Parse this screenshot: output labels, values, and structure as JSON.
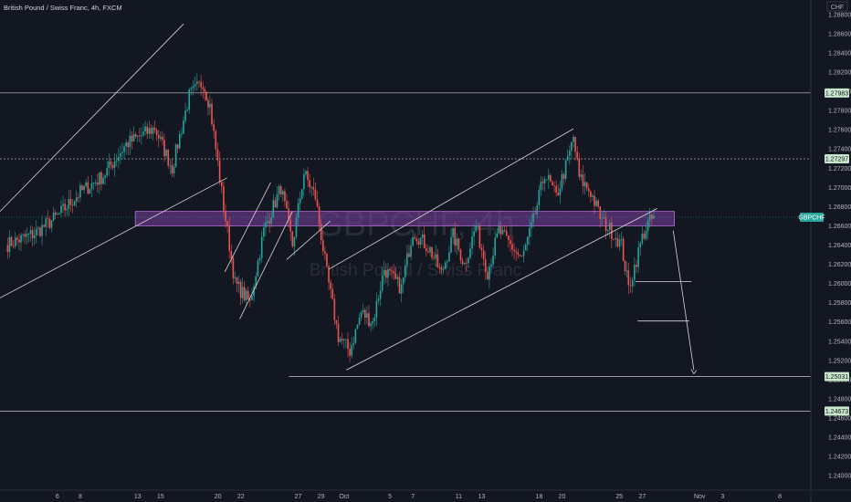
{
  "header": {
    "title": "British Pound / Swiss Franc, 4h, FXCM"
  },
  "watermark": {
    "symbol": "GBPCHF, 4h",
    "name": "British Pound / Swiss Franc"
  },
  "price_axis": {
    "currency": "CHF",
    "current_symbol_tag": "GBPCHF"
  },
  "colors": {
    "background": "#131722",
    "bull": "#26a69a",
    "bear": "#ef5350",
    "zone_fill": "#7b3fa0",
    "zone_border": "#b56fd8",
    "level_line": "#c8c8c8",
    "tag_bg": "#c8e6c9",
    "symbol_tag_bg": "#26a69a",
    "text": "#d1d4dc"
  },
  "chart_data": {
    "type": "candlestick",
    "title": "British Pound / Swiss Franc, 4h, FXCM",
    "ylim": [
      1.2385,
      1.2895
    ],
    "y_ticks": [
      "1.28800",
      "1.28600",
      "1.28400",
      "1.28200",
      "1.28000",
      "1.27800",
      "1.27600",
      "1.27400",
      "1.27200",
      "1.27000",
      "1.26800",
      "1.26600",
      "1.26400",
      "1.26200",
      "1.26000",
      "1.25800",
      "1.25600",
      "1.25400",
      "1.25200",
      "1.25000",
      "1.24800",
      "1.24600",
      "1.24400",
      "1.24200",
      "1.24000"
    ],
    "x_ticks": [
      {
        "label": "6",
        "day": 6
      },
      {
        "label": "8",
        "day": 8
      },
      {
        "label": "13",
        "day": 13
      },
      {
        "label": "15",
        "day": 15
      },
      {
        "label": "20",
        "day": 20
      },
      {
        "label": "22",
        "day": 22
      },
      {
        "label": "27",
        "day": 27
      },
      {
        "label": "29",
        "day": 29
      },
      {
        "label": "Oct",
        "day": 31
      },
      {
        "label": "5",
        "day": 35
      },
      {
        "label": "7",
        "day": 37
      },
      {
        "label": "11",
        "day": 41
      },
      {
        "label": "13",
        "day": 43
      },
      {
        "label": "18",
        "day": 48
      },
      {
        "label": "20",
        "day": 50
      },
      {
        "label": "25",
        "day": 55
      },
      {
        "label": "27",
        "day": 57
      },
      {
        "label": "Nov",
        "day": 62
      },
      {
        "label": "3",
        "day": 64
      },
      {
        "label": "8",
        "day": 69
      }
    ],
    "price_levels": [
      {
        "value": 1.27983,
        "label": "1.27983",
        "style": "solid"
      },
      {
        "value": 1.27297,
        "label": "1.27297",
        "style": "dashed"
      },
      {
        "value": 1.25031,
        "label": "1.25031",
        "style": "solid"
      },
      {
        "value": 1.24673,
        "label": "1.24673",
        "style": "solid"
      }
    ],
    "resistance_zone": {
      "from": 1.266,
      "to": 1.2675
    },
    "current_price": 1.2669,
    "anchors": [
      {
        "day": 1.5,
        "price": 1.264
      },
      {
        "day": 4.0,
        "price": 1.2652
      },
      {
        "day": 6.0,
        "price": 1.267
      },
      {
        "day": 8.0,
        "price": 1.2695
      },
      {
        "day": 10.0,
        "price": 1.2712
      },
      {
        "day": 12.0,
        "price": 1.2745
      },
      {
        "day": 14.5,
        "price": 1.2762
      },
      {
        "day": 16.0,
        "price": 1.272
      },
      {
        "day": 17.5,
        "price": 1.2795
      },
      {
        "day": 18.7,
        "price": 1.281
      },
      {
        "day": 19.3,
        "price": 1.2785
      },
      {
        "day": 20.5,
        "price": 1.268
      },
      {
        "day": 21.5,
        "price": 1.26
      },
      {
        "day": 22.8,
        "price": 1.258
      },
      {
        "day": 24.0,
        "price": 1.2655
      },
      {
        "day": 25.5,
        "price": 1.27
      },
      {
        "day": 26.5,
        "price": 1.264
      },
      {
        "day": 27.5,
        "price": 1.2715
      },
      {
        "day": 28.5,
        "price": 1.269
      },
      {
        "day": 29.5,
        "price": 1.261
      },
      {
        "day": 30.5,
        "price": 1.2545
      },
      {
        "day": 31.5,
        "price": 1.253
      },
      {
        "day": 32.5,
        "price": 1.257
      },
      {
        "day": 33.5,
        "price": 1.256
      },
      {
        "day": 34.5,
        "price": 1.2615
      },
      {
        "day": 36.0,
        "price": 1.2595
      },
      {
        "day": 37.0,
        "price": 1.2655
      },
      {
        "day": 38.5,
        "price": 1.2635
      },
      {
        "day": 39.5,
        "price": 1.261
      },
      {
        "day": 40.5,
        "price": 1.265
      },
      {
        "day": 41.5,
        "price": 1.262
      },
      {
        "day": 42.5,
        "price": 1.266
      },
      {
        "day": 43.5,
        "price": 1.2612
      },
      {
        "day": 44.5,
        "price": 1.2655
      },
      {
        "day": 45.5,
        "price": 1.264
      },
      {
        "day": 46.5,
        "price": 1.2625
      },
      {
        "day": 47.5,
        "price": 1.2665
      },
      {
        "day": 48.5,
        "price": 1.2715
      },
      {
        "day": 49.5,
        "price": 1.269
      },
      {
        "day": 50.5,
        "price": 1.2728
      },
      {
        "day": 51.0,
        "price": 1.2752
      },
      {
        "day": 51.5,
        "price": 1.271
      },
      {
        "day": 52.5,
        "price": 1.2695
      },
      {
        "day": 53.5,
        "price": 1.2665
      },
      {
        "day": 54.5,
        "price": 1.2652
      },
      {
        "day": 55.2,
        "price": 1.264
      },
      {
        "day": 55.8,
        "price": 1.2595
      },
      {
        "day": 56.5,
        "price": 1.2625
      },
      {
        "day": 57.0,
        "price": 1.2648
      },
      {
        "day": 57.5,
        "price": 1.2662
      },
      {
        "day": 58.0,
        "price": 1.2669
      }
    ]
  }
}
